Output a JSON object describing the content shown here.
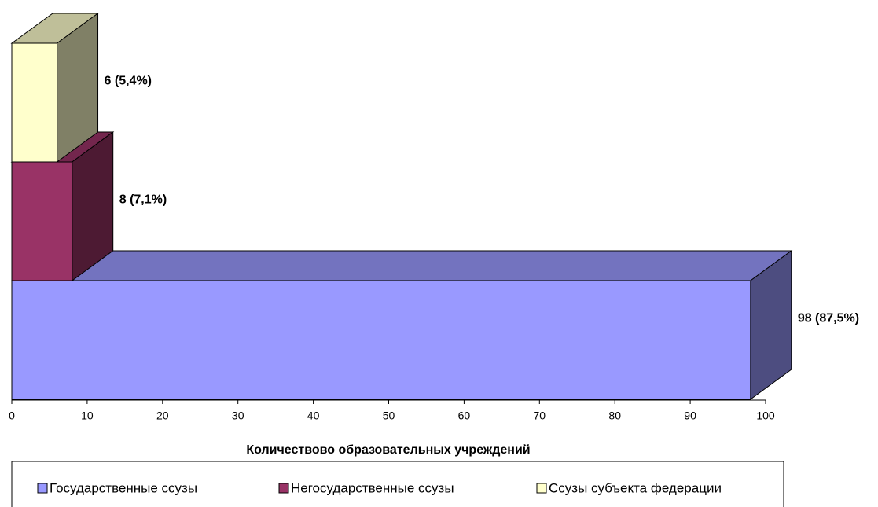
{
  "chart_data": {
    "type": "bar3d_horizontal",
    "xlabel": "Количествово образовательных учреждений",
    "xlim": [
      0,
      100
    ],
    "xticks": [
      0,
      10,
      20,
      30,
      40,
      50,
      60,
      70,
      80,
      90,
      100
    ],
    "series": [
      {
        "name": "Государственные ссузы",
        "color": "#9999ff",
        "values": [
          98
        ],
        "value_labels": [
          "98 (87,5%)"
        ]
      },
      {
        "name": "Негосударственные ссузы",
        "color": "#993366",
        "values": [
          8
        ],
        "value_labels": [
          "8 (7,1%)"
        ]
      },
      {
        "name": "Ссузы субъекта федерации",
        "color": "#ffffcc",
        "values": [
          6
        ],
        "value_labels": [
          "6 (5,4%)"
        ]
      }
    ],
    "legend": "bottom"
  }
}
